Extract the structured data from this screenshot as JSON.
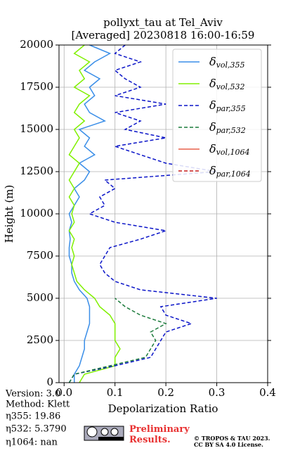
{
  "chart_data": {
    "type": "line",
    "title": [
      "pollyxt_tau at Tel_Aviv",
      "[Averaged] 20230818 16:00-16:59"
    ],
    "xlabel": "Depolarization Ratio",
    "ylabel": "Height (m)",
    "xlim": [
      -0.01,
      0.4
    ],
    "xticks": [
      {
        "value": 0,
        "label": "0.0"
      },
      0.1,
      0.2,
      0.3,
      0.4
    ],
    "ylim": [
      0,
      20000
    ],
    "yticks": [
      0,
      2500,
      5000,
      7500,
      10000,
      12500,
      15000,
      17500,
      20000
    ],
    "grid": true,
    "legend": "upper right",
    "heights": [
      0,
      500,
      1000,
      1500,
      2000,
      2500,
      3000,
      3500,
      4000,
      4500,
      5000,
      5500,
      6000,
      6500,
      7000,
      7500,
      8000,
      8500,
      9000,
      9500,
      10000,
      10500,
      11000,
      11500,
      12000,
      12500,
      13000,
      13500,
      14000,
      14500,
      15000,
      15500,
      16000,
      16500,
      17000,
      17500,
      18000,
      18500,
      19000,
      19500,
      20000
    ],
    "series": [
      {
        "name": "δvol,355",
        "color": "#3a8ee8",
        "dash": false,
        "values": [
          0.02,
          0.02,
          0.03,
          0.035,
          0.04,
          0.04,
          0.045,
          0.05,
          0.05,
          0.05,
          0.045,
          0.03,
          0.02,
          0.015,
          0.015,
          0.01,
          0.01,
          0.012,
          0.01,
          0.015,
          0.01,
          0.02,
          0.03,
          0.02,
          0.04,
          0.05,
          0.03,
          0.06,
          0.04,
          0.05,
          0.03,
          0.08,
          0.05,
          0.04,
          0.06,
          0.05,
          0.07,
          0.04,
          0.06,
          0.09,
          0.05
        ]
      },
      {
        "name": "δvol,532",
        "color": "#80f000",
        "dash": false,
        "values": [
          0.03,
          0.04,
          0.1,
          0.1,
          0.11,
          0.1,
          0.1,
          0.1,
          0.09,
          0.07,
          0.06,
          0.04,
          0.025,
          0.02,
          0.015,
          0.02,
          0.015,
          0.02,
          0.01,
          0.02,
          0.015,
          0.02,
          0.01,
          0.02,
          0.01,
          0.02,
          0.03,
          0.01,
          0.02,
          0.03,
          0.02,
          0.04,
          0.02,
          0.03,
          0.05,
          0.02,
          0.04,
          0.03,
          0.05,
          0.02,
          0.04
        ]
      },
      {
        "name": "δpar,355",
        "color": "#0a14c8",
        "dash": true,
        "values": [
          0.01,
          0.02,
          0.1,
          0.17,
          0.18,
          0.19,
          0.2,
          0.25,
          0.2,
          0.19,
          0.3,
          0.15,
          0.1,
          0.08,
          0.07,
          0.08,
          0.09,
          0.15,
          0.2,
          0.1,
          0.05,
          0.08,
          0.07,
          0.1,
          0.08,
          0.3,
          0.2,
          0.15,
          0.1,
          0.2,
          0.12,
          0.15,
          0.1,
          0.2,
          0.1,
          0.15,
          0.12,
          0.1,
          0.15,
          0.1,
          0.12
        ]
      },
      {
        "name": "δpar,532",
        "color": "#1a7a3a",
        "dash": true,
        "values": [
          0.01,
          0.02,
          0.09,
          0.16,
          0.17,
          0.18,
          0.17,
          0.2,
          0.15,
          0.12,
          0.1,
          null,
          null,
          null,
          null,
          null,
          null,
          null,
          null,
          null,
          null,
          null,
          null,
          null,
          null,
          null,
          null,
          null,
          null,
          null,
          null,
          null,
          null,
          null,
          null,
          null,
          null,
          null,
          null,
          null,
          null
        ]
      },
      {
        "name": "δvol,1064",
        "color": "#e8604c",
        "dash": false,
        "values": [
          null,
          null,
          null,
          null,
          null,
          null,
          null,
          null,
          null,
          null,
          null,
          null,
          null,
          null,
          null,
          null,
          null,
          null,
          null,
          null,
          null,
          null,
          null,
          null,
          null,
          null,
          null,
          null,
          null,
          null,
          null,
          null,
          null,
          null,
          null,
          null,
          null,
          null,
          null,
          null,
          null
        ]
      },
      {
        "name": "δpar,1064",
        "color": "#c81e1e",
        "dash": true,
        "values": [
          null,
          null,
          null,
          null,
          null,
          null,
          null,
          null,
          null,
          null,
          null,
          null,
          null,
          null,
          null,
          null,
          null,
          null,
          null,
          null,
          null,
          null,
          null,
          null,
          null,
          null,
          null,
          null,
          null,
          null,
          null,
          null,
          null,
          null,
          null,
          null,
          null,
          null,
          null,
          null,
          null
        ]
      }
    ]
  },
  "info": [
    "Version: 3.0",
    "Method: Klett",
    "η355:  19.86",
    "η532: 5.3790",
    "η1064:    nan"
  ],
  "notice": "Preliminary Results.",
  "copyright": [
    "© TROPOS & TAU 2023.",
    "CC BY SA 4.0 License."
  ]
}
